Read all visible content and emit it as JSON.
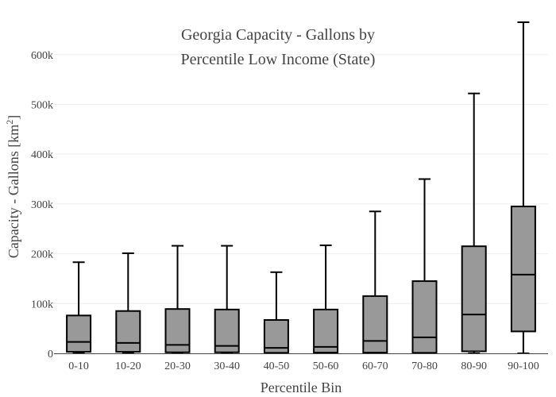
{
  "chart_data": {
    "type": "box",
    "title": "Georgia Capacity - Gallons by",
    "title_line2": "Percentile Low Income (State)",
    "xlabel": "Percentile Bin",
    "ylabel_base": "Capacity - Gallons  [km",
    "ylabel_sup": "2",
    "ylabel_end": "]",
    "ylim": [
      0,
      665000
    ],
    "y_ticks": [
      0,
      100000,
      200000,
      300000,
      400000,
      500000,
      600000
    ],
    "y_tick_labels": [
      "0",
      "100k",
      "200k",
      "300k",
      "400k",
      "500k",
      "600k"
    ],
    "grid": true,
    "box_color": "#999999",
    "categories": [
      "0-10",
      "10-20",
      "20-30",
      "30-40",
      "40-50",
      "50-60",
      "60-70",
      "70-80",
      "80-90",
      "90-100"
    ],
    "boxes": [
      {
        "category": "0-10",
        "min": 0,
        "q1": 3000,
        "median": 23000,
        "q3": 76000,
        "max": 183000
      },
      {
        "category": "10-20",
        "min": 0,
        "q1": 3000,
        "median": 21000,
        "q3": 85000,
        "max": 201000
      },
      {
        "category": "20-30",
        "min": 0,
        "q1": 2000,
        "median": 17000,
        "q3": 89000,
        "max": 216000
      },
      {
        "category": "30-40",
        "min": 0,
        "q1": 2000,
        "median": 15000,
        "q3": 88000,
        "max": 216000
      },
      {
        "category": "40-50",
        "min": 0,
        "q1": 1000,
        "median": 11000,
        "q3": 67000,
        "max": 163000
      },
      {
        "category": "50-60",
        "min": 0,
        "q1": 1500,
        "median": 13000,
        "q3": 88000,
        "max": 217000
      },
      {
        "category": "60-70",
        "min": 0,
        "q1": 1500,
        "median": 25000,
        "q3": 115000,
        "max": 285000
      },
      {
        "category": "70-80",
        "min": 0,
        "q1": 1000,
        "median": 32000,
        "q3": 145000,
        "max": 350000
      },
      {
        "category": "80-90",
        "min": 0,
        "q1": 4000,
        "median": 78000,
        "q3": 215000,
        "max": 522000
      },
      {
        "category": "90-100",
        "min": 0,
        "q1": 44000,
        "median": 158000,
        "q3": 295000,
        "max": 665000
      }
    ]
  }
}
